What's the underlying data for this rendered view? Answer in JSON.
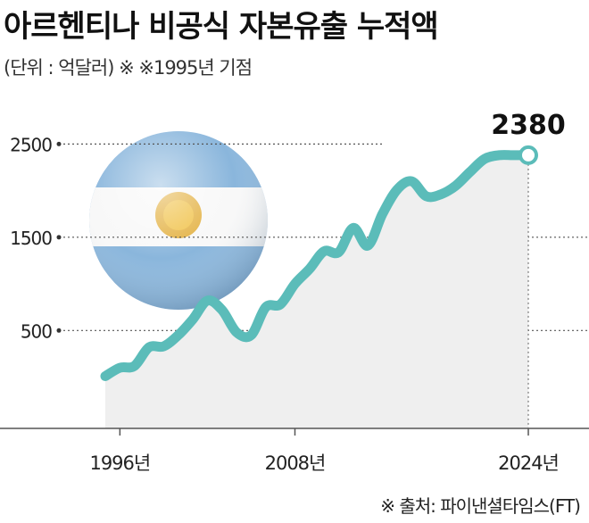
{
  "header": {
    "title": "아르헨티나 비공식 자본유출 누적액",
    "subtitle": "(단위 : 억달러) ※ ※1995년 기점"
  },
  "footer": {
    "source": "※ 출처: 파이낸셜타임스(FT)"
  },
  "colors": {
    "line": "#5bbcb9",
    "area": "#efefef",
    "flag_blue": "#8ab6dc",
    "sun": "#e0a82e"
  },
  "icons": [
    "argentina-flag-sphere-icon"
  ],
  "chart_data": {
    "type": "area",
    "title": "아르헨티나 비공식 자본유출 누적액",
    "unit": "억달러",
    "x": [
      1995,
      1996,
      1997,
      1998,
      1999,
      2000,
      2001,
      2002,
      2003,
      2004,
      2005,
      2006,
      2007,
      2008,
      2009,
      2010,
      2011,
      2012,
      2013,
      2014,
      2015,
      2016,
      2017,
      2018,
      2019,
      2020,
      2021,
      2022,
      2023,
      2024
    ],
    "series": [
      {
        "values": [
          10,
          100,
          120,
          320,
          330,
          450,
          620,
          820,
          720,
          480,
          450,
          750,
          780,
          1000,
          1160,
          1350,
          1340,
          1600,
          1410,
          1750,
          2010,
          2100,
          1940,
          1960,
          2050,
          2200,
          2340,
          2380,
          2380,
          2380
        ]
      }
    ],
    "xticks": [
      {
        "value": 1996,
        "label": "1996년"
      },
      {
        "value": 2008,
        "label": "2008년"
      },
      {
        "value": 2024,
        "label": "2024년"
      }
    ],
    "yticks": [
      {
        "value": 500,
        "label": "500"
      },
      {
        "value": 1500,
        "label": "1500"
      },
      {
        "value": 2500,
        "label": "2500"
      }
    ],
    "ylim": [
      -550,
      2800
    ],
    "grid": "dotted horizontal at tick values",
    "annotation": {
      "x": 2024,
      "value": 2380,
      "label": "2380"
    }
  }
}
